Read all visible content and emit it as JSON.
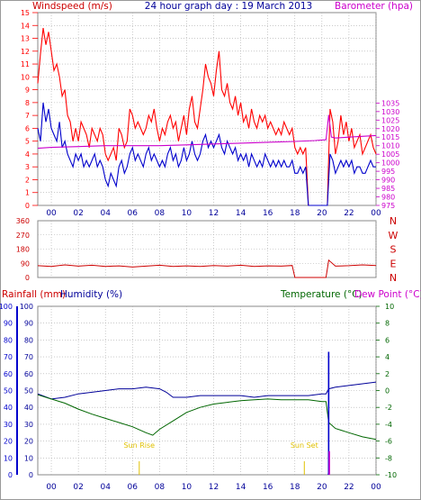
{
  "header": {
    "left_label": "Windspeed (m/s)",
    "center_title": "24 hour graph day : 19 March 2013",
    "right_label": "Barometer (hpa)"
  },
  "colors": {
    "wind_gust": "#ff0000",
    "wind_avg": "#0000cc",
    "barometer": "#cc00cc",
    "direction": "#cc0000",
    "temperature": "#006600",
    "humidity": "#000099",
    "rain": "#0000cc",
    "dewpoint_axis": "#cc00cc",
    "sun": "#e0c000",
    "grid": "#aaaaaa",
    "axis_text": "#000099"
  },
  "x_ticks": [
    "00",
    "02",
    "04",
    "06",
    "08",
    "10",
    "12",
    "14",
    "16",
    "18",
    "20",
    "22",
    "00"
  ],
  "chart_data": [
    {
      "type": "line",
      "panel": "wind-barometer",
      "x_unit": "hour",
      "xlim": [
        23,
        48
      ],
      "y_left": {
        "label": "Windspeed (m/s)",
        "ylim": [
          0,
          15
        ],
        "ticks": [
          "0",
          "1",
          "2",
          "3",
          "4",
          "5",
          "6",
          "7",
          "8",
          "9",
          "10",
          "11",
          "12",
          "13",
          "14",
          "15"
        ]
      },
      "y_right": {
        "label": "Barometer (hpa)",
        "ylim": [
          975,
          1088
        ],
        "ticks": [
          "975",
          "980",
          "985",
          "990",
          "995",
          "1000",
          "1005",
          "1010",
          "1015",
          "1020",
          "1025",
          "1030",
          "1035"
        ]
      },
      "series": [
        {
          "axis": "left",
          "color": "#ff0000",
          "x": [
            23.0,
            23.2,
            23.4,
            23.6,
            23.8,
            24.0,
            24.2,
            24.4,
            24.6,
            24.8,
            25.0,
            25.2,
            25.4,
            25.6,
            25.8,
            26.0,
            26.2,
            26.4,
            26.6,
            26.8,
            27.0,
            27.2,
            27.4,
            27.6,
            27.8,
            28.0,
            28.2,
            28.4,
            28.6,
            28.8,
            29.0,
            29.2,
            29.4,
            29.6,
            29.8,
            30.0,
            30.2,
            30.4,
            30.6,
            30.8,
            31.0,
            31.2,
            31.4,
            31.6,
            31.8,
            32.0,
            32.2,
            32.4,
            32.6,
            32.8,
            33.0,
            33.2,
            33.4,
            33.6,
            33.8,
            34.0,
            34.2,
            34.4,
            34.6,
            34.8,
            35.0,
            35.2,
            35.4,
            35.6,
            35.8,
            36.0,
            36.2,
            36.4,
            36.6,
            36.8,
            37.0,
            37.2,
            37.4,
            37.6,
            37.8,
            38.0,
            38.2,
            38.4,
            38.6,
            38.8,
            39.0,
            39.2,
            39.4,
            39.6,
            39.8,
            40.0,
            40.2,
            40.4,
            40.6,
            40.8,
            41.0,
            41.2,
            41.4,
            41.6,
            41.8,
            42.0,
            42.2,
            42.4,
            42.6,
            42.8,
            43.0,
            43.2,
            43.4,
            43.6,
            43.8,
            44.0,
            44.2,
            44.4,
            44.6,
            44.8,
            45.0,
            45.2,
            45.4,
            45.6,
            45.8,
            46.0,
            46.2,
            46.4,
            46.6,
            46.8,
            47.0,
            47.2,
            47.4,
            47.6,
            47.8,
            48.0
          ],
          "values": [
            9.5,
            11.8,
            13.8,
            12.5,
            13.5,
            12.0,
            10.5,
            11.0,
            10.0,
            8.5,
            9.0,
            7.0,
            6.5,
            5.0,
            6.0,
            5.0,
            6.5,
            6.0,
            5.5,
            4.5,
            6.0,
            5.5,
            5.0,
            6.0,
            5.5,
            4.0,
            3.5,
            4.0,
            4.5,
            3.5,
            6.0,
            5.5,
            4.5,
            5.0,
            7.5,
            7.0,
            6.0,
            6.5,
            6.0,
            5.5,
            6.0,
            7.0,
            6.5,
            7.5,
            6.0,
            5.0,
            6.0,
            5.5,
            6.5,
            7.0,
            6.0,
            6.5,
            5.0,
            6.0,
            7.0,
            5.5,
            7.5,
            8.5,
            6.5,
            6.0,
            7.5,
            9.0,
            11.0,
            10.0,
            9.5,
            8.5,
            10.5,
            12.0,
            9.0,
            8.5,
            9.5,
            8.0,
            7.5,
            8.5,
            7.0,
            8.0,
            6.5,
            7.0,
            6.0,
            7.5,
            6.5,
            6.0,
            7.0,
            6.5,
            7.0,
            6.0,
            6.5,
            6.0,
            5.5,
            6.0,
            5.5,
            6.5,
            6.0,
            5.5,
            6.0,
            4.5,
            4.0,
            4.5,
            4.0,
            4.5,
            0.0,
            0.0,
            0.0,
            0.0,
            0.0,
            0.0,
            0.0,
            0.0,
            7.5,
            6.5,
            4.0,
            5.0,
            7.0,
            5.5,
            6.5,
            5.0,
            6.0,
            4.5,
            5.0,
            5.5,
            4.0,
            4.5,
            5.0,
            5.5,
            4.5,
            4.0
          ]
        },
        {
          "axis": "left",
          "color": "#0000cc",
          "x": [
            23.0,
            23.2,
            23.4,
            23.6,
            23.8,
            24.0,
            24.2,
            24.4,
            24.6,
            24.8,
            25.0,
            25.2,
            25.4,
            25.6,
            25.8,
            26.0,
            26.2,
            26.4,
            26.6,
            26.8,
            27.0,
            27.2,
            27.4,
            27.6,
            27.8,
            28.0,
            28.2,
            28.4,
            28.6,
            28.8,
            29.0,
            29.2,
            29.4,
            29.6,
            29.8,
            30.0,
            30.2,
            30.4,
            30.6,
            30.8,
            31.0,
            31.2,
            31.4,
            31.6,
            31.8,
            32.0,
            32.2,
            32.4,
            32.6,
            32.8,
            33.0,
            33.2,
            33.4,
            33.6,
            33.8,
            34.0,
            34.2,
            34.4,
            34.6,
            34.8,
            35.0,
            35.2,
            35.4,
            35.6,
            35.8,
            36.0,
            36.2,
            36.4,
            36.6,
            36.8,
            37.0,
            37.2,
            37.4,
            37.6,
            37.8,
            38.0,
            38.2,
            38.4,
            38.6,
            38.8,
            39.0,
            39.2,
            39.4,
            39.6,
            39.8,
            40.0,
            40.2,
            40.4,
            40.6,
            40.8,
            41.0,
            41.2,
            41.4,
            41.6,
            41.8,
            42.0,
            42.2,
            42.4,
            42.6,
            42.8,
            43.0,
            43.2,
            43.4,
            43.6,
            43.8,
            44.0,
            44.2,
            44.4,
            44.6,
            44.8,
            45.0,
            45.2,
            45.4,
            45.6,
            45.8,
            46.0,
            46.2,
            46.4,
            46.6,
            46.8,
            47.0,
            47.2,
            47.4,
            47.6,
            47.8,
            48.0
          ],
          "values": [
            6.0,
            5.0,
            8.0,
            6.5,
            7.5,
            6.0,
            5.5,
            5.0,
            6.5,
            4.5,
            5.0,
            4.0,
            3.5,
            3.0,
            4.0,
            3.5,
            4.0,
            3.0,
            3.5,
            3.0,
            3.5,
            4.0,
            3.0,
            3.5,
            3.0,
            2.0,
            1.5,
            2.5,
            2.0,
            1.5,
            3.0,
            3.5,
            2.5,
            3.0,
            4.0,
            4.5,
            3.5,
            4.0,
            3.5,
            3.0,
            4.0,
            4.5,
            3.5,
            4.0,
            3.5,
            3.0,
            3.5,
            3.0,
            4.0,
            4.5,
            3.5,
            4.0,
            3.0,
            3.5,
            4.5,
            3.5,
            4.0,
            5.0,
            4.0,
            3.5,
            4.0,
            5.0,
            5.5,
            4.5,
            5.0,
            4.5,
            5.0,
            5.5,
            4.5,
            4.0,
            5.0,
            4.5,
            4.0,
            4.5,
            3.5,
            4.0,
            3.5,
            4.0,
            3.0,
            4.0,
            3.5,
            3.0,
            3.5,
            3.0,
            4.0,
            3.5,
            3.0,
            3.5,
            3.0,
            3.5,
            3.0,
            3.5,
            3.0,
            3.0,
            3.5,
            2.5,
            2.5,
            3.0,
            2.5,
            3.0,
            0.0,
            0.0,
            0.0,
            0.0,
            0.0,
            0.0,
            0.0,
            0.0,
            4.0,
            3.5,
            2.5,
            3.0,
            3.5,
            3.0,
            3.5,
            3.0,
            3.5,
            2.5,
            3.0,
            3.0,
            2.5,
            2.5,
            3.0,
            3.5,
            3.0,
            3.0
          ]
        },
        {
          "axis": "right",
          "color": "#cc00cc",
          "x": [
            23.0,
            24.0,
            26.0,
            28.0,
            30.0,
            32.0,
            34.0,
            36.0,
            38.0,
            40.0,
            42.0,
            43.5,
            44.3,
            44.5,
            44.7,
            45.0,
            46.0,
            47.0,
            48.0
          ],
          "values": [
            1008.5,
            1009.0,
            1009.5,
            1010.0,
            1010.0,
            1010.0,
            1010.5,
            1011.0,
            1011.5,
            1012.0,
            1012.5,
            1013.0,
            1013.5,
            1028.0,
            1015.0,
            1014.5,
            1015.0,
            1015.5,
            1016.0
          ]
        }
      ]
    },
    {
      "type": "line",
      "panel": "wind-direction",
      "x_unit": "hour",
      "xlim": [
        23,
        48
      ],
      "y_left": {
        "label": "",
        "ylim": [
          0,
          360
        ],
        "ticks": [
          "0",
          "90",
          "180",
          "270",
          "360"
        ]
      },
      "y_right": {
        "ticks": [
          "N",
          "E",
          "S",
          "W",
          "N"
        ]
      },
      "series": [
        {
          "color": "#cc0000",
          "x": [
            23.0,
            24.0,
            25.0,
            26.0,
            27.0,
            28.0,
            29.0,
            30.0,
            31.0,
            32.0,
            33.0,
            34.0,
            35.0,
            36.0,
            37.0,
            38.0,
            39.0,
            40.0,
            41.0,
            41.8,
            42.0,
            43.5,
            44.0,
            44.3,
            44.5,
            45.0,
            46.0,
            47.0,
            48.0
          ],
          "values": [
            75,
            70,
            80,
            72,
            78,
            70,
            74,
            66,
            72,
            78,
            70,
            74,
            70,
            76,
            72,
            78,
            70,
            74,
            72,
            76,
            0,
            0,
            0,
            0,
            110,
            72,
            75,
            80,
            76
          ]
        }
      ]
    },
    {
      "type": "line",
      "panel": "rain-humidity-temperature",
      "x_unit": "hour",
      "xlim": [
        23,
        48
      ],
      "y_left": {
        "label": "Rainfall (mm)",
        "ylim": [
          0,
          100
        ],
        "ticks": [
          "0",
          "10",
          "20",
          "30",
          "40",
          "50",
          "60",
          "70",
          "80",
          "90",
          "100"
        ]
      },
      "y_left2": {
        "label": "Humidity (%)",
        "ylim": [
          0,
          100
        ]
      },
      "y_right": {
        "label": "Temperature (°C)",
        "ylim": [
          -10,
          10
        ],
        "ticks": [
          "-10",
          "-8",
          "-6",
          "-4",
          "-2",
          "0",
          "2",
          "4",
          "6",
          "8",
          "10"
        ]
      },
      "y_right2": {
        "label": "Dew Point (°C)"
      },
      "series": [
        {
          "axis": "left2",
          "color": "#000099",
          "x": [
            23.0,
            24.0,
            25.0,
            26.0,
            27.0,
            28.0,
            29.0,
            30.0,
            31.0,
            32.0,
            32.5,
            33.0,
            34.0,
            35.0,
            36.0,
            37.0,
            38.0,
            39.0,
            40.0,
            41.0,
            42.0,
            43.0,
            44.0,
            44.3,
            44.5,
            45.0,
            46.0,
            47.0,
            48.0
          ],
          "values": [
            48,
            45,
            46,
            48,
            49,
            50,
            51,
            51,
            52,
            51,
            49,
            46,
            46,
            47,
            47,
            47,
            47,
            46,
            47,
            47,
            47,
            47,
            48,
            48,
            51,
            52,
            53,
            54,
            55
          ]
        },
        {
          "axis": "right",
          "color": "#006600",
          "x": [
            23.0,
            24.0,
            25.0,
            26.0,
            27.0,
            28.0,
            29.0,
            30.0,
            31.0,
            31.5,
            32.0,
            33.0,
            34.0,
            35.0,
            36.0,
            37.0,
            38.0,
            39.0,
            40.0,
            41.0,
            42.0,
            43.0,
            44.0,
            44.3,
            44.5,
            45.0,
            46.0,
            47.0,
            48.0
          ],
          "values": [
            -0.5,
            -1.0,
            -1.5,
            -2.2,
            -2.8,
            -3.3,
            -3.8,
            -4.3,
            -5.0,
            -5.3,
            -4.6,
            -3.6,
            -2.6,
            -2.0,
            -1.6,
            -1.4,
            -1.2,
            -1.1,
            -1.0,
            -1.1,
            -1.1,
            -1.1,
            -1.3,
            -1.3,
            -3.8,
            -4.5,
            -5.0,
            -5.5,
            -5.8
          ]
        },
        {
          "axis": "left",
          "color": "#0000cc",
          "type": "bar",
          "x": [
            44.5
          ],
          "values": [
            0.7
          ]
        }
      ],
      "annotations": [
        {
          "text": "Sun Rise",
          "hour": 30.5
        },
        {
          "text": "Sun Set",
          "hour": 42.7
        }
      ],
      "events": [
        {
          "hour": 44.5,
          "value": 73,
          "color": "#0000cc"
        },
        {
          "hour": 44.55,
          "value": 14,
          "color": "#cc00cc"
        }
      ]
    }
  ]
}
